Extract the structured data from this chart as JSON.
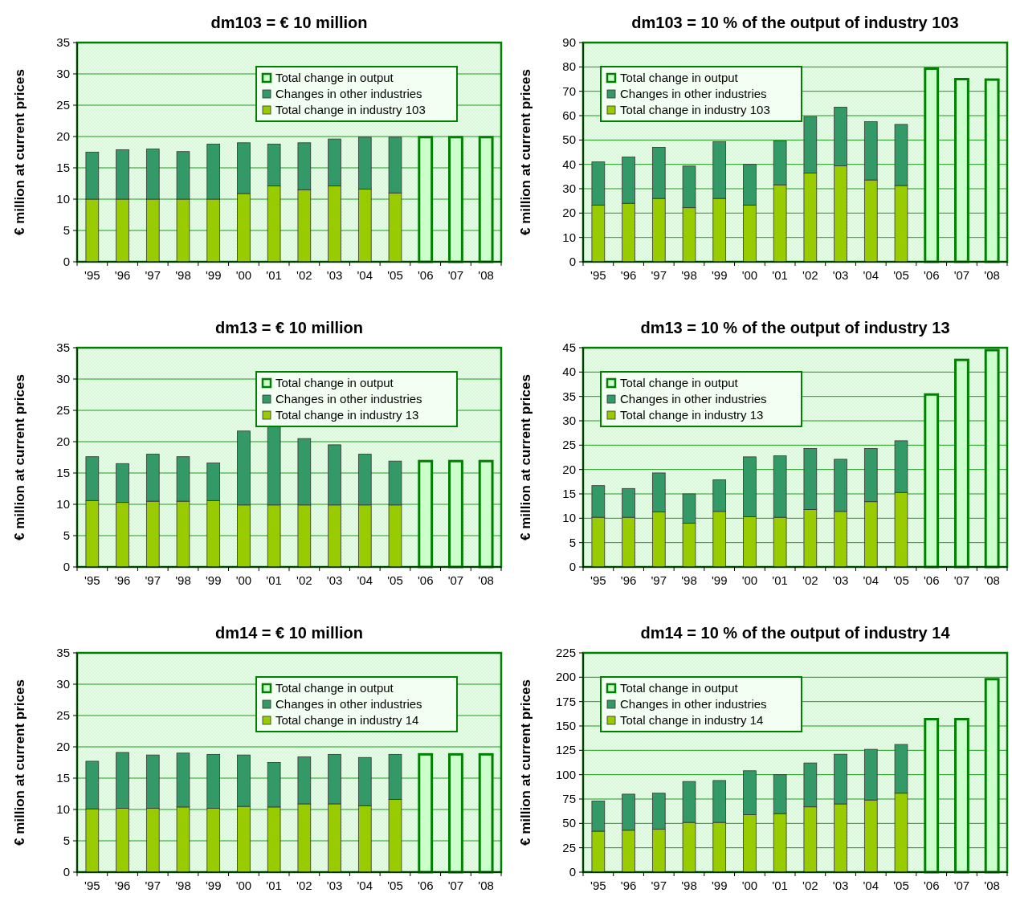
{
  "chart_data": [
    {
      "type": "bar",
      "title": "dm103 = € 10 million",
      "ylabel": "€ million at current prices",
      "categories": [
        "'95",
        "'96",
        "'97",
        "'98",
        "'99",
        "'00",
        "'01",
        "'02",
        "'03",
        "'04",
        "'05",
        "'06",
        "'07",
        "'08"
      ],
      "stacked": true,
      "ylim": [
        0,
        35
      ],
      "yticks": [
        0,
        5,
        10,
        15,
        20,
        25,
        30,
        35
      ],
      "grid": "y",
      "legend": "top right",
      "series": [
        {
          "name": "Total change in industry 103",
          "color": "#99cc00",
          "values": [
            10,
            10,
            10,
            10,
            10,
            10.9,
            12.1,
            11.5,
            12.1,
            11.6,
            11.0,
            null,
            null,
            null
          ]
        },
        {
          "name": "Changes in other industries",
          "color": "#339966",
          "values": [
            7.5,
            7.9,
            8.0,
            7.6,
            8.8,
            8.1,
            6.7,
            7.5,
            7.5,
            8.3,
            8.9,
            null,
            null,
            null
          ]
        },
        {
          "name": "Total change in output",
          "color": "#ccffcc",
          "values": [
            null,
            null,
            null,
            null,
            null,
            null,
            null,
            null,
            null,
            null,
            null,
            19.9,
            19.9,
            19.9
          ]
        }
      ]
    },
    {
      "type": "bar",
      "title": "dm103 = 10 % of the output of industry 103",
      "ylabel": "€ million at current prices",
      "categories": [
        "'95",
        "'96",
        "'97",
        "'98",
        "'99",
        "'00",
        "'01",
        "'02",
        "'03",
        "'04",
        "'05",
        "'06",
        "'07",
        "'08"
      ],
      "stacked": true,
      "ylim": [
        0,
        90
      ],
      "yticks": [
        0,
        10,
        20,
        30,
        40,
        50,
        60,
        70,
        80,
        90
      ],
      "grid": "y",
      "legend": "top left",
      "series": [
        {
          "name": "Total change in industry 103",
          "color": "#99cc00",
          "values": [
            23.3,
            24,
            26,
            22.2,
            26,
            23.3,
            31.6,
            36.4,
            39.4,
            33.6,
            31.3,
            null,
            null,
            null
          ]
        },
        {
          "name": "Changes in other industries",
          "color": "#339966",
          "values": [
            17.7,
            19,
            21,
            17.1,
            23.3,
            16.7,
            18,
            23.2,
            24.1,
            23.9,
            25.1,
            null,
            null,
            null
          ]
        },
        {
          "name": "Total change in output",
          "color": "#ccffcc",
          "values": [
            null,
            null,
            null,
            null,
            null,
            null,
            null,
            null,
            null,
            null,
            null,
            79.3,
            75,
            74.8
          ]
        }
      ]
    },
    {
      "type": "bar",
      "title": "dm13 =  € 10 million",
      "ylabel": "€ million at current prices",
      "categories": [
        "'95",
        "'96",
        "'97",
        "'98",
        "'99",
        "'00",
        "'01",
        "'02",
        "'03",
        "'04",
        "'05",
        "'06",
        "'07",
        "'08"
      ],
      "stacked": true,
      "ylim": [
        0,
        35
      ],
      "yticks": [
        0,
        5,
        10,
        15,
        20,
        25,
        30,
        35
      ],
      "grid": "y",
      "legend": "top right",
      "series": [
        {
          "name": "Total change in industry 13",
          "color": "#99cc00",
          "values": [
            10.6,
            10.3,
            10.5,
            10.5,
            10.6,
            9.9,
            9.9,
            9.9,
            9.9,
            9.9,
            9.9,
            null,
            null,
            null
          ]
        },
        {
          "name": "Changes in other industries",
          "color": "#339966",
          "values": [
            7.0,
            6.2,
            7.5,
            7.1,
            6.0,
            11.8,
            12.5,
            10.6,
            9.6,
            8.1,
            7.0,
            null,
            null,
            null
          ]
        },
        {
          "name": "Total change in output",
          "color": "#ccffcc",
          "values": [
            null,
            null,
            null,
            null,
            null,
            null,
            null,
            null,
            null,
            null,
            null,
            16.9,
            16.9,
            16.9
          ]
        }
      ]
    },
    {
      "type": "bar",
      "title": "dm13 = 10 % of the output of industry 13",
      "ylabel": "€ million at current prices",
      "categories": [
        "'95",
        "'96",
        "'97",
        "'98",
        "'99",
        "'00",
        "'01",
        "'02",
        "'03",
        "'04",
        "'05",
        "'06",
        "'07",
        "'08"
      ],
      "stacked": true,
      "ylim": [
        0,
        45
      ],
      "yticks": [
        0,
        5,
        10,
        15,
        20,
        25,
        30,
        35,
        40,
        45
      ],
      "grid": "y",
      "legend": "top left",
      "series": [
        {
          "name": "Total change in industry 13",
          "color": "#99cc00",
          "values": [
            10.2,
            10.2,
            11.3,
            9,
            11.4,
            10.3,
            10.2,
            11.8,
            11.4,
            13.4,
            15.3,
            null,
            null,
            null
          ]
        },
        {
          "name": "Changes in other industries",
          "color": "#339966",
          "values": [
            6.5,
            5.9,
            8.0,
            6.0,
            6.5,
            12.3,
            12.6,
            12.5,
            10.7,
            10.9,
            10.6,
            null,
            null,
            null
          ]
        },
        {
          "name": "Total change in output",
          "color": "#ccffcc",
          "values": [
            null,
            null,
            null,
            null,
            null,
            null,
            null,
            null,
            null,
            null,
            null,
            35.4,
            42.5,
            44.5
          ]
        }
      ]
    },
    {
      "type": "bar",
      "title": "dm14 =  € 10 million",
      "ylabel": "€ million at current prices",
      "categories": [
        "'95",
        "'96",
        "'97",
        "'98",
        "'99",
        "'00",
        "'01",
        "'02",
        "'03",
        "'04",
        "'05",
        "'06",
        "'07",
        "'08"
      ],
      "stacked": true,
      "ylim": [
        0,
        35
      ],
      "yticks": [
        0,
        5,
        10,
        15,
        20,
        25,
        30,
        35
      ],
      "grid": "y",
      "legend": "top right",
      "series": [
        {
          "name": "Total change in industry 14",
          "color": "#99cc00",
          "values": [
            10.1,
            10.2,
            10.2,
            10.4,
            10.2,
            10.5,
            10.4,
            10.9,
            10.9,
            10.6,
            11.6,
            null,
            null,
            null
          ]
        },
        {
          "name": "Changes in other industries",
          "color": "#339966",
          "values": [
            7.6,
            8.9,
            8.5,
            8.6,
            8.6,
            8.2,
            7.1,
            7.5,
            7.9,
            7.7,
            7.2,
            null,
            null,
            null
          ]
        },
        {
          "name": "Total change in output",
          "color": "#ccffcc",
          "values": [
            null,
            null,
            null,
            null,
            null,
            null,
            null,
            null,
            null,
            null,
            null,
            18.8,
            18.8,
            18.8
          ]
        }
      ]
    },
    {
      "type": "bar",
      "title": "dm14 = 10 % of the output of industry 14",
      "ylabel": "€ million at current prices",
      "categories": [
        "'95",
        "'96",
        "'97",
        "'98",
        "'99",
        "'00",
        "'01",
        "'02",
        "'03",
        "'04",
        "'05",
        "'06",
        "'07",
        "'08"
      ],
      "stacked": true,
      "ylim": [
        0,
        225
      ],
      "yticks": [
        0,
        25,
        50,
        75,
        100,
        125,
        150,
        175,
        200,
        225
      ],
      "grid": "y",
      "legend": "top left",
      "series": [
        {
          "name": "Total change in industry 14",
          "color": "#99cc00",
          "values": [
            42,
            43,
            44,
            51,
            51,
            59,
            60,
            67,
            70,
            74,
            81,
            null,
            null,
            null
          ]
        },
        {
          "name": "Changes in other industries",
          "color": "#339966",
          "values": [
            31,
            37,
            37,
            42,
            43,
            45,
            40,
            45,
            51,
            52,
            50,
            null,
            null,
            null
          ]
        },
        {
          "name": "Total change in output",
          "color": "#ccffcc",
          "values": [
            null,
            null,
            null,
            null,
            null,
            null,
            null,
            null,
            null,
            null,
            null,
            157,
            157,
            198
          ]
        }
      ]
    }
  ]
}
